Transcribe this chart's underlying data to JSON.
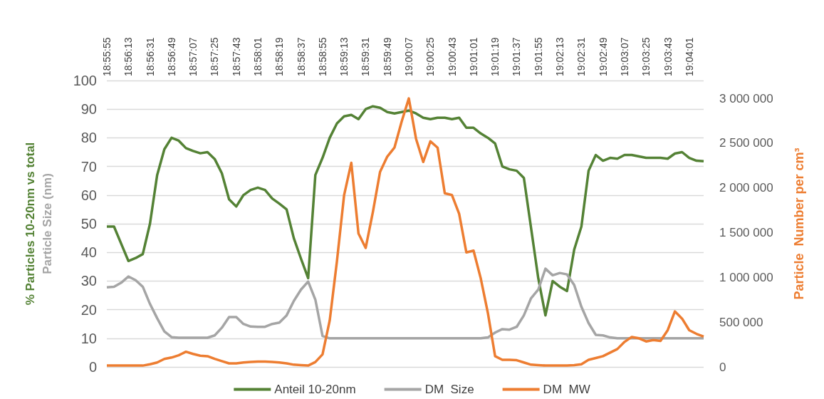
{
  "chart_data": {
    "type": "line",
    "ylabel": "% Particles 10-20nm vs total\nParticle Size (nm)",
    "y2label": "Particle  Number per cm³",
    "categories": [
      "18:55:55",
      null,
      null,
      "18:56:13",
      null,
      null,
      "18:56:31",
      null,
      null,
      "18:56:49",
      null,
      null,
      "18:57:07",
      null,
      null,
      "18:57:25",
      null,
      null,
      "18:57:43",
      null,
      null,
      "18:58:01",
      null,
      null,
      "18:58:19",
      null,
      null,
      "18:58:37",
      null,
      null,
      "18:58:55",
      null,
      null,
      "18:59:13",
      null,
      null,
      "18:59:31",
      null,
      null,
      "18:59:49",
      null,
      null,
      "19:00:07",
      null,
      null,
      "19:00:25",
      null,
      null,
      "19:00:43",
      null,
      null,
      "19:01:01",
      null,
      null,
      "19:01:19",
      null,
      null,
      "19:01:37",
      null,
      null,
      "19:01:55",
      null,
      null,
      "19:02:13",
      null,
      null,
      "19:02:31",
      null,
      null,
      "19:02:49",
      null,
      null,
      "19:03:07",
      null,
      null,
      "19:03:25",
      null,
      null,
      "19:03:43",
      null,
      null,
      "19:04:01",
      null,
      null
    ],
    "series": [
      {
        "name": "Anteil 10-20nm",
        "color": "#548235",
        "values": [
          49,
          49,
          43,
          37,
          38,
          39.4,
          50,
          67,
          76,
          80,
          79,
          76.4,
          75.4,
          74.6,
          75,
          72.6,
          67.6,
          58.5,
          56,
          60,
          61.8,
          62.6,
          61.8,
          58.8,
          57,
          55,
          45,
          37.8,
          31,
          67,
          73,
          80,
          85,
          87.5,
          88,
          86.5,
          90,
          91,
          90.5,
          89,
          88.5,
          89,
          89.5,
          88.5,
          87,
          86.5,
          87,
          87,
          86.5,
          87,
          83.5,
          83.5,
          81.5,
          80,
          78,
          70,
          69,
          68.5,
          66,
          48.5,
          31,
          18,
          30,
          28,
          26.5,
          41,
          49,
          68.5,
          74,
          72,
          73,
          72.7,
          74,
          74,
          73.5,
          73,
          73,
          73,
          72.7,
          74.5,
          75,
          73,
          72,
          71.8
        ]
      },
      {
        "name": "DM  Size",
        "color": "#a5a5a5",
        "values": [
          27.8,
          28,
          29.4,
          31.6,
          30.3,
          28,
          22,
          17,
          12.4,
          10.4,
          10.2,
          10.2,
          10.2,
          10.2,
          10.2,
          11,
          13.7,
          17.4,
          17.4,
          15,
          14.1,
          14,
          14,
          15,
          15.5,
          18,
          23,
          27,
          29.8,
          23.5,
          10.8,
          10,
          10,
          10,
          10,
          10,
          10,
          10,
          10,
          10,
          10,
          10,
          10,
          10,
          10,
          10,
          10,
          10,
          10,
          10,
          10,
          10,
          10,
          10.3,
          12,
          13.2,
          13,
          14,
          18,
          24,
          27,
          34.3,
          32,
          32.8,
          32.3,
          28.6,
          21,
          15.3,
          11.2,
          11,
          10.3,
          10,
          10,
          10,
          10,
          10,
          10,
          10,
          10,
          10,
          10,
          10,
          10,
          10
        ]
      },
      {
        "name": "DM  MW",
        "color": "#ed7d31",
        "axis": "y2",
        "values": [
          15000,
          15000,
          15000,
          15000,
          15000,
          15000,
          30000,
          50000,
          90000,
          105000,
          130000,
          170000,
          145000,
          125000,
          120000,
          90000,
          65000,
          40000,
          40000,
          50000,
          55000,
          60000,
          60000,
          55000,
          50000,
          40000,
          25000,
          20000,
          15000,
          55000,
          140000,
          520000,
          1180000,
          1920000,
          2280000,
          1490000,
          1330000,
          1730000,
          2180000,
          2350000,
          2450000,
          2740000,
          3000000,
          2550000,
          2290000,
          2520000,
          2450000,
          1940000,
          1920000,
          1710000,
          1280000,
          1300000,
          990000,
          600000,
          120000,
          80000,
          80000,
          75000,
          50000,
          25000,
          20000,
          15000,
          15000,
          15000,
          15000,
          20000,
          30000,
          80000,
          100000,
          120000,
          160000,
          200000,
          280000,
          335000,
          320000,
          285000,
          300000,
          290000,
          410000,
          620000,
          540000,
          410000,
          370000,
          340000
        ]
      }
    ],
    "ylim": [
      0,
      100
    ],
    "yticks": [
      0,
      10,
      20,
      30,
      40,
      50,
      60,
      70,
      80,
      90,
      100
    ],
    "y2lim": [
      0,
      3200000
    ],
    "y2ticks": [
      0,
      {
        "value": 500000,
        "label": "500 000"
      },
      {
        "value": 1000000,
        "label": "1 000 000"
      },
      {
        "value": 1500000,
        "label": "1 500 000"
      },
      {
        "value": 2000000,
        "label": "2 000 000"
      },
      {
        "value": 2500000,
        "label": "2 500 000"
      },
      {
        "value": 3000000,
        "label": "3 000 000"
      }
    ],
    "grid": "y",
    "legend": "bottom",
    "marker": "none"
  }
}
